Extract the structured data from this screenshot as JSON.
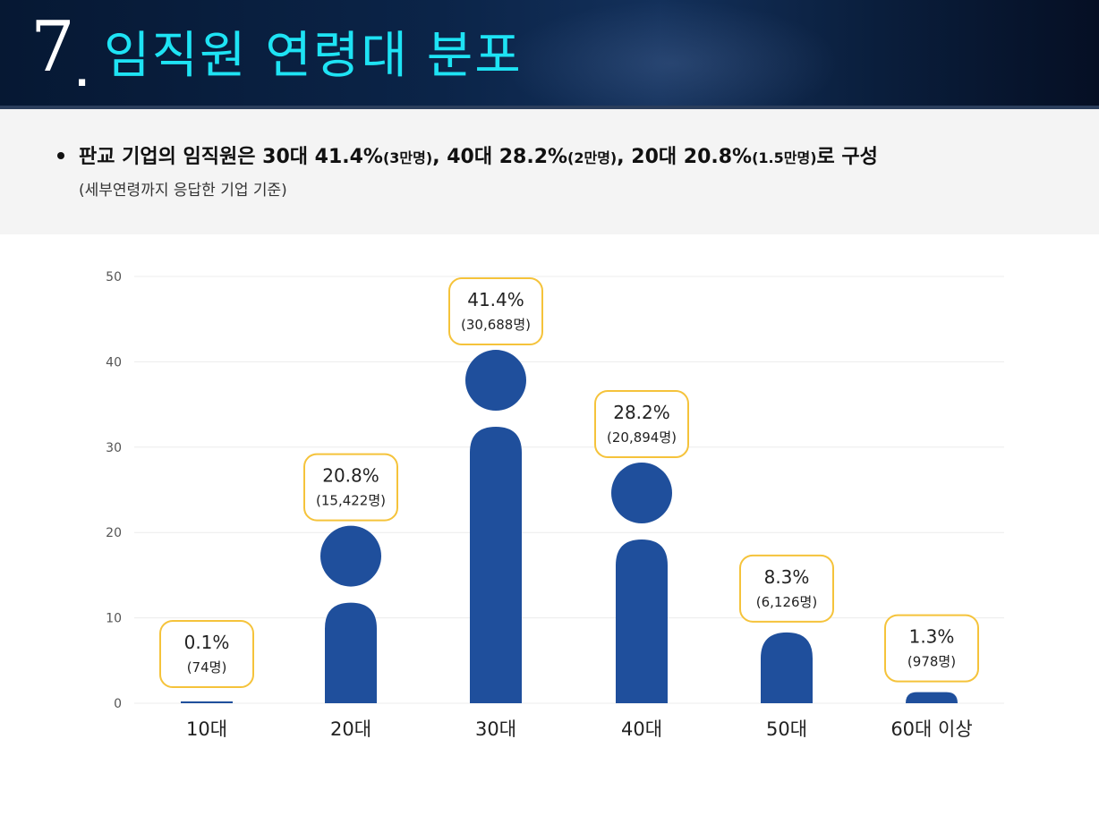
{
  "header": {
    "number": "7",
    "dot": ".",
    "title": "임직원 연령대 분포"
  },
  "summary": {
    "main_parts": [
      {
        "text": "판교 기업의 임직원은 30대 41.4%",
        "small": false
      },
      {
        "text": "(3만명)",
        "small": true
      },
      {
        "text": ", 40대 28.2%",
        "small": false
      },
      {
        "text": "(2만명)",
        "small": true
      },
      {
        "text": ", 20대 20.8%",
        "small": false
      },
      {
        "text": "(1.5만명)",
        "small": true
      },
      {
        "text": "로 구성",
        "small": false
      }
    ],
    "sub": "(세부연령까지 응답한 기업 기준)"
  },
  "chart_data": {
    "type": "bar",
    "categories": [
      "10대",
      "20대",
      "30대",
      "40대",
      "50대",
      "60대 이상"
    ],
    "values": [
      0.1,
      20.8,
      41.4,
      28.2,
      8.3,
      1.3
    ],
    "value_labels": [
      "0.1%",
      "20.8%",
      "41.4%",
      "28.2%",
      "8.3%",
      "1.3%"
    ],
    "count_labels": [
      "(74명)",
      "(15,422명)",
      "(30,688명)",
      "(20,894명)",
      "(6,126명)",
      "(978명)"
    ],
    "yticks": [
      0,
      10,
      20,
      30,
      40,
      50
    ],
    "ylim": [
      0,
      50
    ],
    "grid": true,
    "title": "",
    "xlabel": "",
    "ylabel": "",
    "colors": {
      "bar": "#1f4f9c",
      "label_border": "#f5c33b",
      "grid": "#ececec",
      "tick_text": "#555555",
      "category_text": "#222222"
    }
  }
}
